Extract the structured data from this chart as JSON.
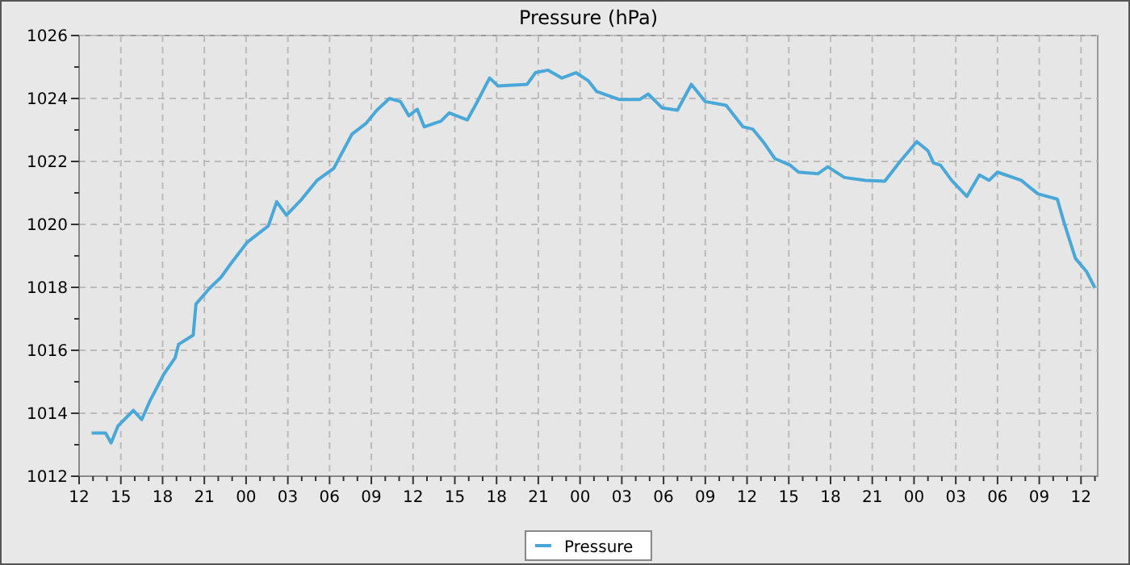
{
  "chart_data": {
    "type": "line",
    "title": "Pressure (hPa)",
    "grid": true,
    "legend": "bottom",
    "xlim": [
      12,
      85.2
    ],
    "ylim": [
      1012,
      1026
    ],
    "yticks": [
      1012,
      {
        "value": 1013,
        "label": null
      },
      1014,
      {
        "value": 1015,
        "label": null
      },
      1016,
      {
        "value": 1017,
        "label": null
      },
      1018,
      {
        "value": 1019,
        "label": null
      },
      1020,
      {
        "value": 1021,
        "label": null
      },
      1022,
      {
        "value": 1023,
        "label": null
      },
      1024,
      {
        "value": 1025,
        "label": null
      },
      1026
    ],
    "xticks": [
      {
        "value": 12,
        "label": "12"
      },
      {
        "value": 13,
        "label": null
      },
      {
        "value": 14,
        "label": null
      },
      {
        "value": 15,
        "label": "15"
      },
      {
        "value": 16,
        "label": null
      },
      {
        "value": 17,
        "label": null
      },
      {
        "value": 18,
        "label": "18"
      },
      {
        "value": 19,
        "label": null
      },
      {
        "value": 20,
        "label": null
      },
      {
        "value": 21,
        "label": "21"
      },
      {
        "value": 22,
        "label": null
      },
      {
        "value": 23,
        "label": null
      },
      {
        "value": 24,
        "label": "00"
      },
      {
        "value": 25,
        "label": null
      },
      {
        "value": 26,
        "label": null
      },
      {
        "value": 27,
        "label": "03"
      },
      {
        "value": 28,
        "label": null
      },
      {
        "value": 29,
        "label": null
      },
      {
        "value": 30,
        "label": "06"
      },
      {
        "value": 31,
        "label": null
      },
      {
        "value": 32,
        "label": null
      },
      {
        "value": 33,
        "label": "09"
      },
      {
        "value": 34,
        "label": null
      },
      {
        "value": 35,
        "label": null
      },
      {
        "value": 36,
        "label": "12"
      },
      {
        "value": 37,
        "label": null
      },
      {
        "value": 38,
        "label": null
      },
      {
        "value": 39,
        "label": "15"
      },
      {
        "value": 40,
        "label": null
      },
      {
        "value": 41,
        "label": null
      },
      {
        "value": 42,
        "label": "18"
      },
      {
        "value": 43,
        "label": null
      },
      {
        "value": 44,
        "label": null
      },
      {
        "value": 45,
        "label": "21"
      },
      {
        "value": 46,
        "label": null
      },
      {
        "value": 47,
        "label": null
      },
      {
        "value": 48,
        "label": "00"
      },
      {
        "value": 49,
        "label": null
      },
      {
        "value": 50,
        "label": null
      },
      {
        "value": 51,
        "label": "03"
      },
      {
        "value": 52,
        "label": null
      },
      {
        "value": 53,
        "label": null
      },
      {
        "value": 54,
        "label": "06"
      },
      {
        "value": 55,
        "label": null
      },
      {
        "value": 56,
        "label": null
      },
      {
        "value": 57,
        "label": "09"
      },
      {
        "value": 58,
        "label": null
      },
      {
        "value": 59,
        "label": null
      },
      {
        "value": 60,
        "label": "12"
      },
      {
        "value": 61,
        "label": null
      },
      {
        "value": 62,
        "label": null
      },
      {
        "value": 63,
        "label": "15"
      },
      {
        "value": 64,
        "label": null
      },
      {
        "value": 65,
        "label": null
      },
      {
        "value": 66,
        "label": "18"
      },
      {
        "value": 67,
        "label": null
      },
      {
        "value": 68,
        "label": null
      },
      {
        "value": 69,
        "label": "21"
      },
      {
        "value": 70,
        "label": null
      },
      {
        "value": 71,
        "label": null
      },
      {
        "value": 72,
        "label": "00"
      },
      {
        "value": 73,
        "label": null
      },
      {
        "value": 74,
        "label": null
      },
      {
        "value": 75,
        "label": "03"
      },
      {
        "value": 76,
        "label": null
      },
      {
        "value": 77,
        "label": null
      },
      {
        "value": 78,
        "label": "06"
      },
      {
        "value": 79,
        "label": null
      },
      {
        "value": 80,
        "label": null
      },
      {
        "value": 81,
        "label": "09"
      },
      {
        "value": 82,
        "label": null
      },
      {
        "value": 83,
        "label": null
      },
      {
        "value": 84,
        "label": "12"
      },
      {
        "value": 85,
        "label": null
      }
    ],
    "series": [
      {
        "name": "Pressure",
        "color": "#4aa8d8",
        "line_style": "solid",
        "x": [
          12.9,
          13.9,
          14.3,
          14.8,
          15.9,
          16.5,
          17.1,
          18.1,
          18.9,
          19.15,
          20.2,
          20.4,
          21.4,
          22.2,
          22.9,
          24.1,
          25.6,
          26.2,
          26.9,
          28.0,
          29.1,
          30.3,
          31.6,
          32.6,
          33.4,
          34.3,
          35.1,
          35.7,
          36.3,
          36.8,
          38.0,
          38.6,
          39.9,
          40.5,
          41.5,
          42.1,
          44.2,
          44.8,
          45.7,
          46.7,
          47.7,
          48.6,
          49.2,
          50.8,
          52.3,
          52.9,
          53.9,
          55.0,
          56.0,
          57.0,
          58.5,
          59.7,
          60.4,
          61.2,
          62.0,
          63.1,
          63.7,
          65.1,
          65.8,
          67.0,
          68.5,
          69.9,
          71.0,
          72.2,
          73.0,
          73.4,
          73.9,
          74.7,
          75.8,
          76.7,
          77.4,
          78.0,
          79.7,
          80.9,
          82.3,
          82.8,
          83.6,
          84.4,
          85.0
        ],
        "values": [
          1013.37,
          1013.37,
          1013.06,
          1013.6,
          1014.09,
          1013.8,
          1014.4,
          1015.25,
          1015.76,
          1016.19,
          1016.48,
          1017.47,
          1017.98,
          1018.32,
          1018.75,
          1019.44,
          1019.95,
          1020.72,
          1020.29,
          1020.8,
          1021.4,
          1021.78,
          1022.86,
          1023.2,
          1023.63,
          1024.0,
          1023.9,
          1023.45,
          1023.66,
          1023.1,
          1023.28,
          1023.54,
          1023.32,
          1023.8,
          1024.65,
          1024.4,
          1024.45,
          1024.82,
          1024.9,
          1024.65,
          1024.82,
          1024.56,
          1024.22,
          1023.97,
          1023.97,
          1024.14,
          1023.7,
          1023.63,
          1024.45,
          1023.9,
          1023.78,
          1023.1,
          1023.03,
          1022.6,
          1022.09,
          1021.88,
          1021.66,
          1021.61,
          1021.83,
          1021.49,
          1021.4,
          1021.37,
          1022.0,
          1022.63,
          1022.34,
          1021.95,
          1021.88,
          1021.4,
          1020.89,
          1021.57,
          1021.4,
          1021.66,
          1021.4,
          1020.97,
          1020.8,
          1020.03,
          1018.92,
          1018.5,
          1017.98
        ]
      }
    ]
  }
}
